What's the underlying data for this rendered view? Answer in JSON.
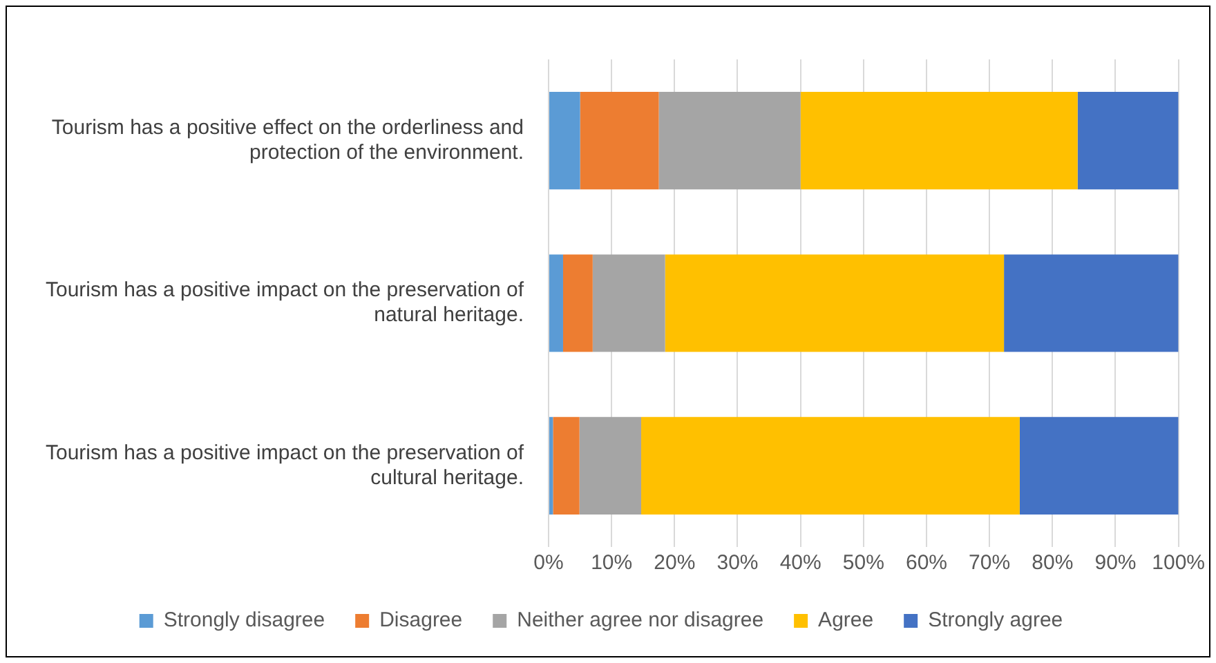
{
  "chart_data": {
    "type": "bar",
    "orientation": "horizontal",
    "stacked": true,
    "categories": [
      "Tourism has a positive effect on the orderliness and protection of the environment.",
      "Tourism has a positive impact on the preservation of natural heritage.",
      "Tourism has a positive impact on the preservation of cultural heritage."
    ],
    "series": [
      {
        "name": "Strongly disagree",
        "color": "#5b9bd5",
        "values": [
          5,
          2.3,
          0.7
        ]
      },
      {
        "name": "Disagree",
        "color": "#ed7d31",
        "values": [
          12.5,
          4.7,
          4.2
        ]
      },
      {
        "name": "Neither agree nor disagree",
        "color": "#a5a5a5",
        "values": [
          22.5,
          11.5,
          9.8
        ]
      },
      {
        "name": "Agree",
        "color": "#ffc000",
        "values": [
          44,
          53.8,
          60.1
        ]
      },
      {
        "name": "Strongly agree",
        "color": "#4472c4",
        "values": [
          16,
          27.7,
          25.2
        ]
      }
    ],
    "xlim": [
      0,
      100
    ],
    "xticks": [
      {
        "value": 0,
        "label": "0%"
      },
      {
        "value": 10,
        "label": "10%"
      },
      {
        "value": 20,
        "label": "20%"
      },
      {
        "value": 30,
        "label": "30%"
      },
      {
        "value": 40,
        "label": "40%"
      },
      {
        "value": 50,
        "label": "50%"
      },
      {
        "value": 60,
        "label": "60%"
      },
      {
        "value": 70,
        "label": "70%"
      },
      {
        "value": 80,
        "label": "80%"
      },
      {
        "value": 90,
        "label": "90%"
      },
      {
        "value": 100,
        "label": "100%"
      }
    ],
    "grid": "x",
    "legend": "bottom"
  }
}
